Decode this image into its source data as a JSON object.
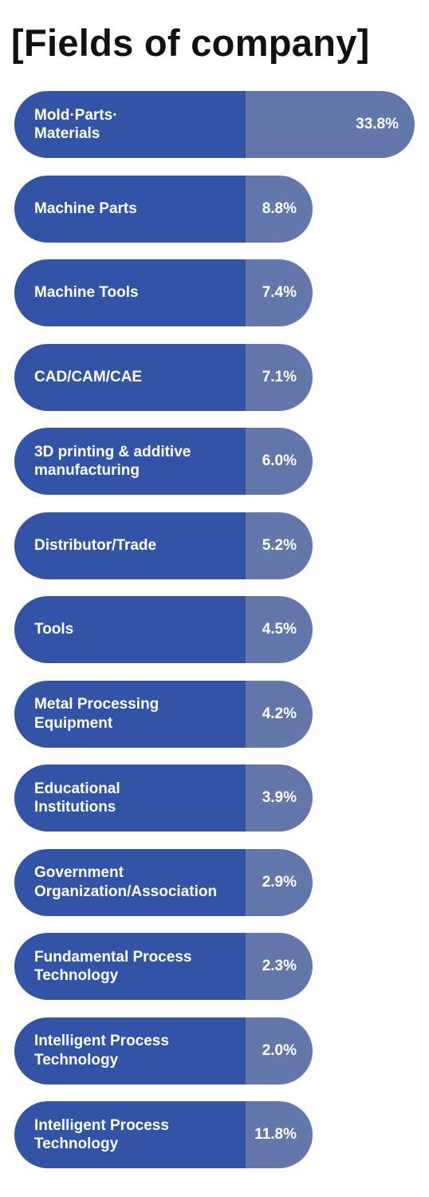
{
  "colors": {
    "label_bg": "#3253a6",
    "value_bg": "#6377ab",
    "text": "#ffffff",
    "title": "#111111"
  },
  "chart_data": {
    "type": "bar",
    "orientation": "horizontal",
    "title": "[Fields of company]",
    "xlabel": "",
    "ylabel": "",
    "unit": "%",
    "grid": false,
    "legend": "none",
    "categories": [
      "Mold·Parts·\nMaterials",
      "Machine Parts",
      "Machine Tools",
      "CAD/CAM/CAE",
      "3D printing & additive\nmanufacturing",
      "Distributor/Trade",
      "Tools",
      "Metal Processing\nEquipment",
      "Educational\nInstitutions",
      "Government\nOrganization/Association",
      "Fundamental Process\nTechnology",
      "Intelligent Process\nTechnology",
      "Intelligent Process\nTechnology"
    ],
    "values": [
      33.8,
      8.8,
      7.4,
      7.1,
      6.0,
      5.2,
      4.5,
      4.2,
      3.9,
      2.9,
      2.3,
      2.0,
      11.8
    ],
    "value_labels": [
      "33.8%",
      "8.8%",
      "7.4%",
      "7.1%",
      "6.0%",
      "5.2%",
      "4.5%",
      "4.2%",
      "3.9%",
      "2.9%",
      "2.3%",
      "2.0%",
      "11.8%"
    ]
  }
}
